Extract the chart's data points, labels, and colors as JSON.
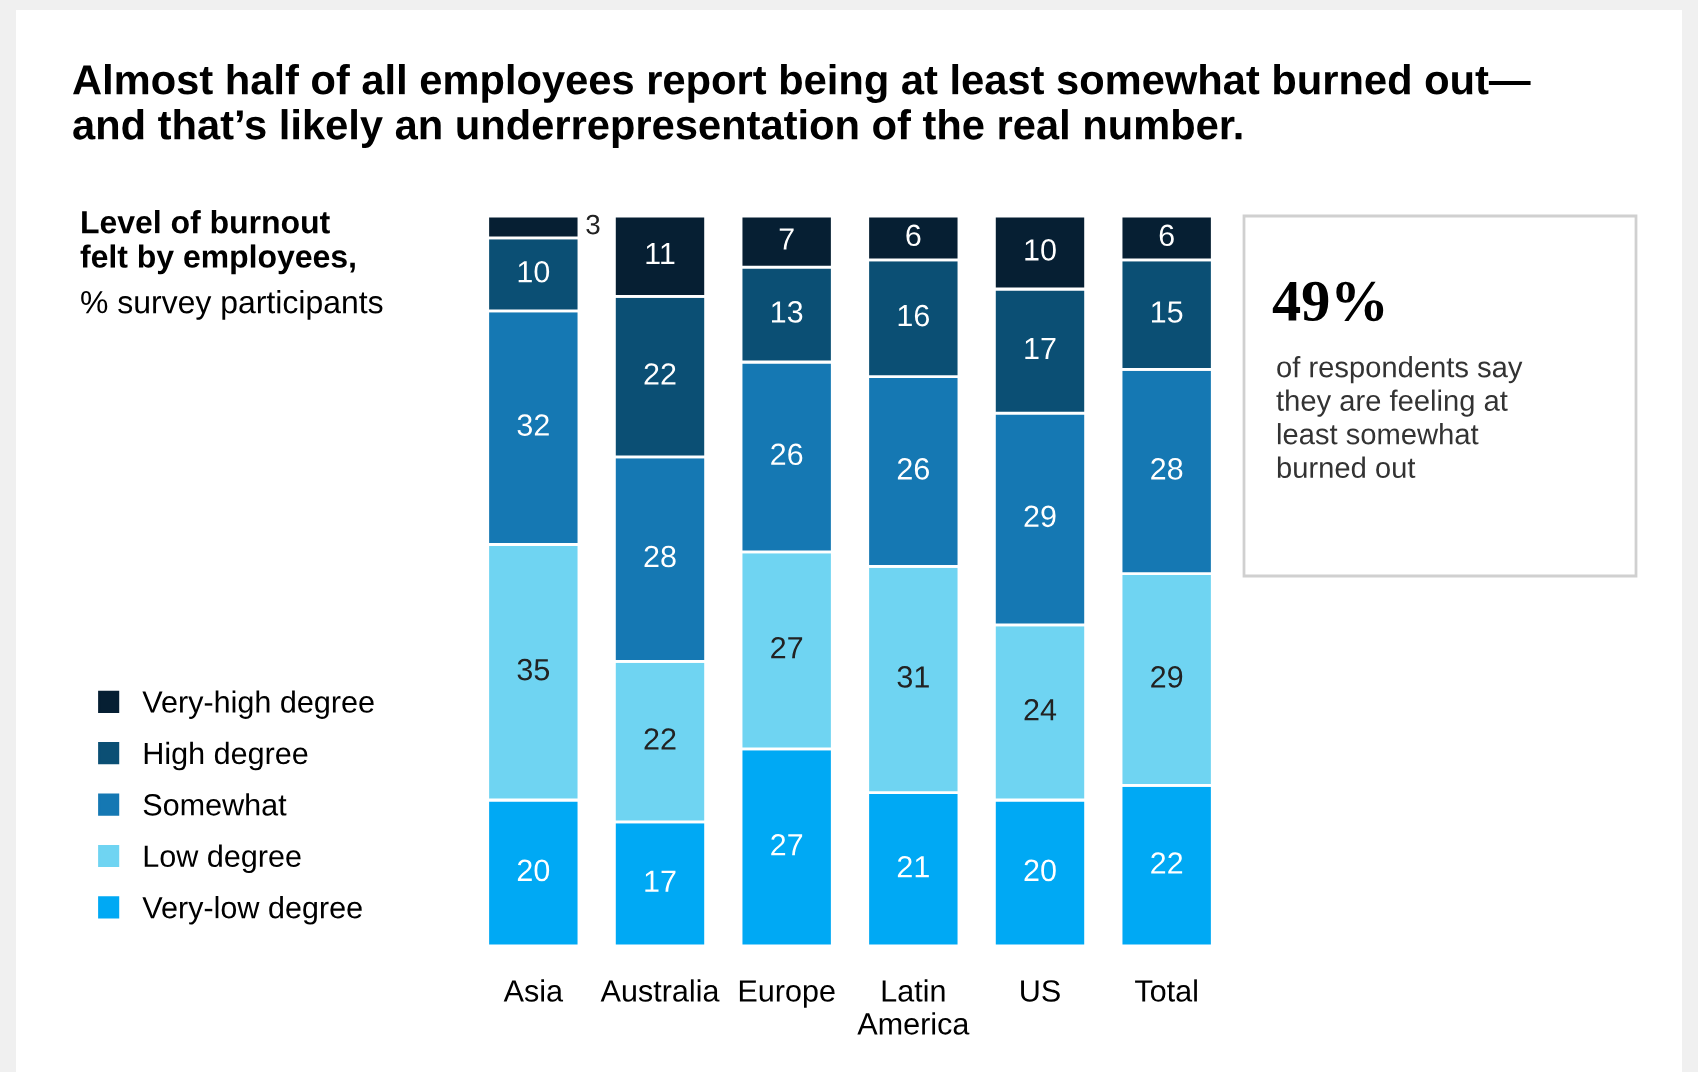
{
  "chart_data": {
    "type": "bar",
    "stacked": true,
    "data_labels": true,
    "title": "Almost half of all employees report being at least somewhat burned out—\nand that’s likely an underrepresentation of the real number.",
    "legend_title": "Level of burnout\nfelt by employees,",
    "ylabel": "% survey participants",
    "categories": [
      "Asia",
      "Australia",
      "Europe",
      "Latin America",
      "US",
      "Total"
    ],
    "series": [
      {
        "name": "Very-low degree",
        "color": "#00a9f4",
        "values": [
          20,
          17,
          27,
          21,
          20,
          22
        ]
      },
      {
        "name": "Low degree",
        "color": "#6fd4f2",
        "values": [
          35,
          22,
          27,
          31,
          24,
          29
        ]
      },
      {
        "name": "Somewhat",
        "color": "#1578b3",
        "values": [
          32,
          28,
          26,
          26,
          29,
          28
        ]
      },
      {
        "name": "High degree",
        "color": "#0b4f74",
        "values": [
          10,
          22,
          13,
          16,
          17,
          15
        ]
      },
      {
        "name": "Very-high degree",
        "color": "#061f33",
        "values": [
          3,
          11,
          7,
          6,
          10,
          6
        ]
      }
    ],
    "annotations": [
      "49%",
      "of respondents say\nthey are feeling at\nleast somewhat\nburned out"
    ],
    "legend": "left",
    "grid": false
  }
}
